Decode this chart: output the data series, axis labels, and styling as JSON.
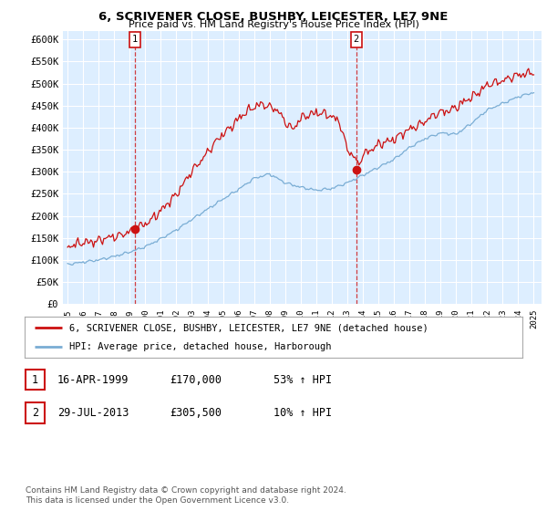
{
  "title": "6, SCRIVENER CLOSE, BUSHBY, LEICESTER, LE7 9NE",
  "subtitle": "Price paid vs. HM Land Registry's House Price Index (HPI)",
  "legend_line1": "6, SCRIVENER CLOSE, BUSHBY, LEICESTER, LE7 9NE (detached house)",
  "legend_line2": "HPI: Average price, detached house, Harborough",
  "transaction1_date": "16-APR-1999",
  "transaction1_price": "£170,000",
  "transaction1_hpi": "53% ↑ HPI",
  "transaction2_date": "29-JUL-2013",
  "transaction2_price": "£305,500",
  "transaction2_hpi": "10% ↑ HPI",
  "footnote": "Contains HM Land Registry data © Crown copyright and database right 2024.\nThis data is licensed under the Open Government Licence v3.0.",
  "hpi_color": "#7aadd4",
  "price_color": "#cc1111",
  "marker_color": "#cc1111",
  "background_color": "#ddeeff",
  "grid_color": "#ffffff",
  "ylim": [
    0,
    620000
  ],
  "yticks": [
    0,
    50000,
    100000,
    150000,
    200000,
    250000,
    300000,
    350000,
    400000,
    450000,
    500000,
    550000,
    600000
  ],
  "xstart_year": 1995,
  "xend_year": 2025
}
